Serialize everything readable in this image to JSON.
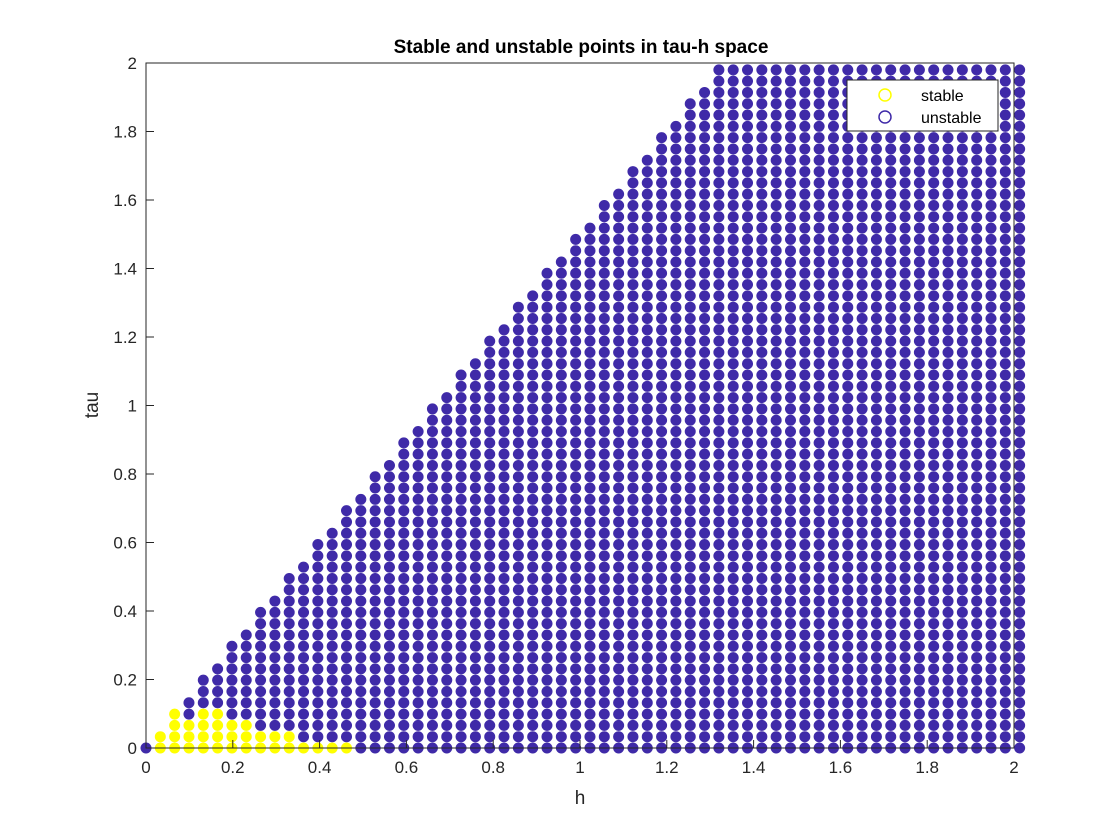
{
  "chart_data": {
    "type": "scatter",
    "title": "Stable and unstable points in tau-h space",
    "xlabel": "h",
    "ylabel": "tau",
    "xlim": [
      0,
      2
    ],
    "ylim": [
      0,
      2
    ],
    "xticks": [
      "0",
      "0.2",
      "0.4",
      "0.6",
      "0.8",
      "1",
      "1.2",
      "1.4",
      "1.6",
      "1.8",
      "2"
    ],
    "yticks": [
      "0",
      "0.2",
      "0.4",
      "0.6",
      "0.8",
      "1",
      "1.2",
      "1.4",
      "1.6",
      "1.8",
      "2"
    ],
    "grid": false,
    "legend_position": "top-right",
    "grid_step": 0.033,
    "series": [
      {
        "name": "stable",
        "color": "#ffff00",
        "description_of_region": "columns with tau values from 0 up to the listed max",
        "columns": [
          {
            "h": 0.033,
            "tau_max": 0.033
          },
          {
            "h": 0.066,
            "tau_max": 0.099
          },
          {
            "h": 0.099,
            "tau_max": 0.066
          },
          {
            "h": 0.132,
            "tau_max": 0.099
          },
          {
            "h": 0.165,
            "tau_max": 0.099
          },
          {
            "h": 0.198,
            "tau_max": 0.066
          },
          {
            "h": 0.231,
            "tau_max": 0.066
          },
          {
            "h": 0.264,
            "tau_max": 0.033
          },
          {
            "h": 0.297,
            "tau_max": 0.033
          },
          {
            "h": 0.33,
            "tau_max": 0.033
          },
          {
            "h": 0.363,
            "tau_max": 0
          },
          {
            "h": 0.396,
            "tau_max": 0
          },
          {
            "h": 0.429,
            "tau_max": 0
          },
          {
            "h": 0.462,
            "tau_max": 0
          }
        ]
      },
      {
        "name": "unstable",
        "color": "#3f2aa8",
        "boundary": "tau <= 1.5 * h, tau <= 1.98"
      }
    ]
  }
}
